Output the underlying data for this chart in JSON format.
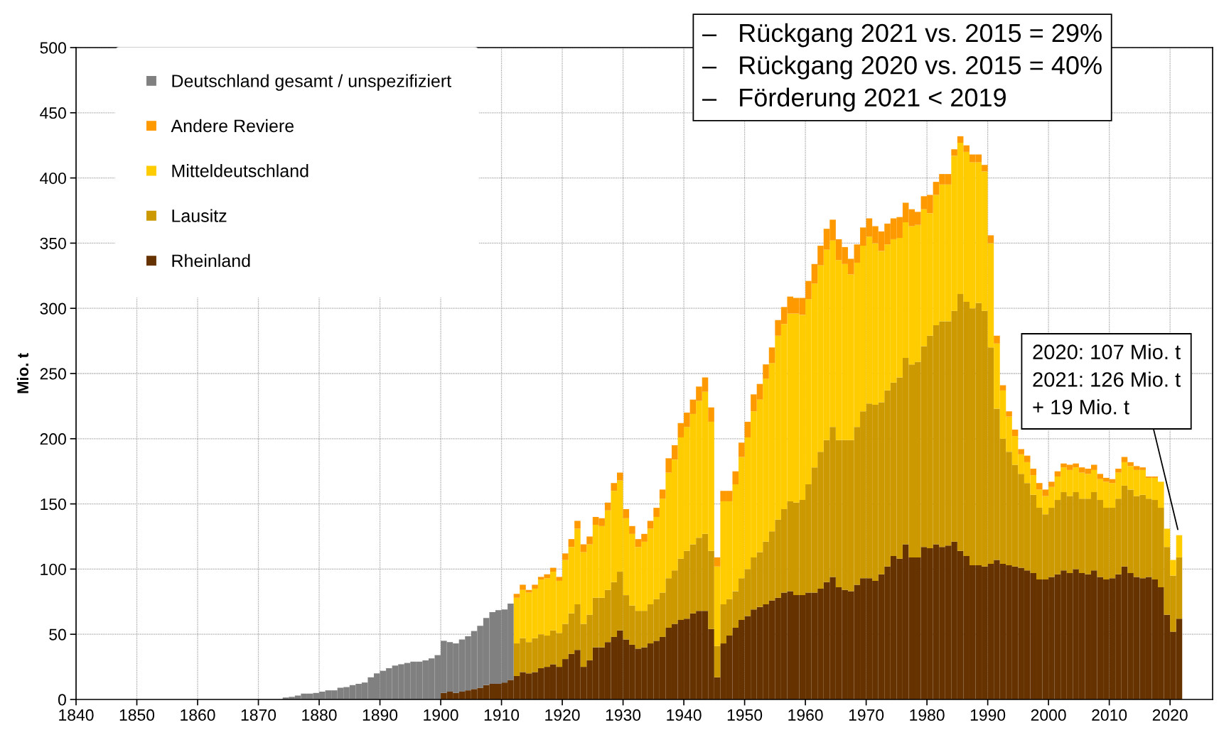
{
  "chart_data": {
    "type": "bar",
    "stacked": true,
    "ylabel": "Mio. t",
    "x": [
      1874,
      1875,
      1876,
      1877,
      1878,
      1879,
      1880,
      1881,
      1882,
      1883,
      1884,
      1885,
      1886,
      1887,
      1888,
      1889,
      1890,
      1891,
      1892,
      1893,
      1894,
      1895,
      1896,
      1897,
      1898,
      1899,
      1900,
      1901,
      1902,
      1903,
      1904,
      1905,
      1906,
      1907,
      1908,
      1909,
      1910,
      1911,
      1912,
      1913,
      1914,
      1915,
      1916,
      1917,
      1918,
      1919,
      1920,
      1921,
      1922,
      1923,
      1924,
      1925,
      1926,
      1927,
      1928,
      1929,
      1930,
      1931,
      1932,
      1933,
      1934,
      1935,
      1936,
      1937,
      1938,
      1939,
      1940,
      1941,
      1942,
      1943,
      1944,
      1945,
      1946,
      1947,
      1948,
      1949,
      1950,
      1951,
      1952,
      1953,
      1954,
      1955,
      1956,
      1957,
      1958,
      1959,
      1960,
      1961,
      1962,
      1963,
      1964,
      1965,
      1966,
      1967,
      1968,
      1969,
      1970,
      1971,
      1972,
      1973,
      1974,
      1975,
      1976,
      1977,
      1978,
      1979,
      1980,
      1981,
      1982,
      1983,
      1984,
      1985,
      1986,
      1987,
      1988,
      1989,
      1990,
      1991,
      1992,
      1993,
      1994,
      1995,
      1996,
      1997,
      1998,
      1999,
      2000,
      2001,
      2002,
      2003,
      2004,
      2005,
      2006,
      2007,
      2008,
      2009,
      2010,
      2011,
      2012,
      2013,
      2014,
      2015,
      2016,
      2017,
      2018,
      2019,
      2020,
      2021
    ],
    "series": [
      {
        "name": "Rheinland",
        "color": "#663300",
        "values": [
          null,
          null,
          null,
          null,
          null,
          null,
          null,
          null,
          null,
          null,
          null,
          null,
          null,
          null,
          null,
          null,
          null,
          null,
          null,
          null,
          null,
          null,
          null,
          null,
          null,
          null,
          5,
          6,
          5,
          6,
          7,
          8,
          9,
          11,
          12,
          12,
          13,
          15,
          18,
          21,
          20,
          21,
          24,
          25,
          27,
          25,
          31,
          35,
          38,
          25,
          30,
          40,
          40,
          44,
          48,
          53,
          46,
          42,
          39,
          40,
          43,
          45,
          48,
          55,
          58,
          61,
          62,
          66,
          68,
          68,
          54,
          17,
          43,
          49,
          55,
          61,
          64,
          69,
          71,
          73,
          76,
          78,
          82,
          83,
          80,
          80,
          82,
          82,
          85,
          90,
          94,
          86,
          84,
          83,
          88,
          93,
          93,
          91,
          96,
          102,
          110,
          108,
          119,
          109,
          109,
          117,
          116,
          119,
          117,
          118,
          121,
          114,
          110,
          103,
          103,
          102,
          104,
          107,
          104,
          103,
          102,
          101,
          99,
          97,
          92,
          92,
          94,
          96,
          99,
          97,
          100,
          97,
          96,
          99,
          94,
          92,
          93,
          96,
          102,
          97,
          94,
          93,
          94,
          92,
          86,
          65,
          52,
          62
        ]
      },
      {
        "name": "Lausitz",
        "color": "#cc9900",
        "values": [
          null,
          null,
          null,
          null,
          null,
          null,
          null,
          null,
          null,
          null,
          null,
          null,
          null,
          null,
          null,
          null,
          null,
          null,
          null,
          null,
          null,
          null,
          null,
          null,
          null,
          null,
          null,
          null,
          null,
          null,
          null,
          null,
          null,
          null,
          null,
          null,
          null,
          null,
          25,
          26,
          24,
          26,
          26,
          24,
          26,
          26,
          27,
          31,
          35,
          33,
          35,
          38,
          38,
          40,
          42,
          45,
          34,
          30,
          29,
          28,
          30,
          32,
          34,
          38,
          41,
          47,
          52,
          53,
          56,
          59,
          60,
          24,
          30,
          28,
          28,
          32,
          36,
          40,
          42,
          48,
          53,
          60,
          64,
          69,
          71,
          73,
          83,
          96,
          105,
          109,
          115,
          113,
          115,
          116,
          121,
          128,
          134,
          135,
          132,
          135,
          133,
          139,
          143,
          148,
          150,
          154,
          163,
          168,
          173,
          172,
          177,
          197,
          195,
          197,
          201,
          196,
          166,
          116,
          96,
          87,
          78,
          72,
          67,
          60,
          55,
          50,
          53,
          57,
          60,
          59,
          59,
          57,
          58,
          60,
          59,
          55,
          54,
          58,
          62,
          64,
          62,
          64,
          60,
          61,
          61,
          52,
          43,
          47
        ]
      },
      {
        "name": "Mitteldeutschland",
        "color": "#ffcc00",
        "values": [
          null,
          null,
          null,
          null,
          null,
          null,
          null,
          null,
          null,
          null,
          null,
          null,
          null,
          null,
          null,
          null,
          null,
          null,
          null,
          null,
          null,
          null,
          null,
          null,
          null,
          null,
          null,
          null,
          null,
          null,
          null,
          null,
          null,
          null,
          null,
          null,
          null,
          null,
          35,
          37,
          38,
          38,
          42,
          44,
          45,
          40,
          49,
          51,
          58,
          55,
          54,
          56,
          55,
          61,
          70,
          70,
          59,
          55,
          49,
          53,
          58,
          63,
          72,
          81,
          85,
          93,
          95,
          100,
          105,
          109,
          99,
          61,
          79,
          75,
          82,
          93,
          101,
          112,
          117,
          125,
          129,
          141,
          142,
          144,
          145,
          142,
          142,
          141,
          143,
          146,
          143,
          138,
          135,
          127,
          126,
          127,
          128,
          124,
          116,
          112,
          110,
          107,
          104,
          106,
          105,
          105,
          94,
          100,
          105,
          105,
          119,
          116,
          115,
          112,
          108,
          107,
          80,
          50,
          37,
          27,
          22,
          15,
          16,
          15,
          14,
          14,
          16,
          18,
          19,
          20,
          19,
          20,
          19,
          17,
          16,
          20,
          19,
          20,
          18,
          18,
          20,
          19,
          16,
          17,
          20,
          14,
          12,
          17
        ]
      },
      {
        "name": "Andere Reviere",
        "color": "#ff9900",
        "values": [
          null,
          null,
          null,
          null,
          null,
          null,
          null,
          null,
          null,
          null,
          null,
          null,
          null,
          null,
          null,
          null,
          null,
          null,
          null,
          null,
          null,
          null,
          null,
          null,
          null,
          null,
          null,
          null,
          null,
          null,
          null,
          null,
          null,
          null,
          null,
          null,
          null,
          null,
          3,
          4,
          2,
          3,
          2,
          3,
          3,
          3,
          5,
          6,
          6,
          6,
          6,
          6,
          6,
          6,
          6,
          6,
          7,
          6,
          6,
          6,
          6,
          7,
          7,
          11,
          11,
          11,
          11,
          11,
          11,
          11,
          11,
          7,
          8,
          8,
          10,
          11,
          12,
          13,
          12,
          11,
          12,
          12,
          13,
          13,
          12,
          13,
          14,
          15,
          15,
          16,
          16,
          16,
          13,
          12,
          14,
          14,
          14,
          13,
          15,
          16,
          16,
          16,
          15,
          13,
          10,
          10,
          14,
          10,
          8,
          8,
          5,
          5,
          5,
          6,
          6,
          5,
          6,
          6,
          4,
          4,
          5,
          4,
          5,
          5,
          5,
          5,
          4,
          4,
          3,
          4,
          3,
          4,
          4,
          4,
          4,
          3,
          3,
          3,
          4,
          3,
          3,
          2,
          1,
          1,
          null,
          null,
          null,
          null
        ]
      },
      {
        "name": "Deutschland gesamt / unspezifiziert",
        "color": "#808080",
        "values": [
          1.5,
          2,
          3,
          4.5,
          4.5,
          5,
          6,
          7,
          7,
          9,
          9.5,
          11,
          12,
          13,
          17,
          20,
          22,
          24,
          26,
          27,
          28,
          29,
          29,
          30,
          31.5,
          34,
          40,
          38,
          38,
          40,
          41.5,
          44.5,
          47.5,
          51.5,
          55,
          56.5,
          56,
          58.5,
          null,
          null,
          null,
          null,
          null,
          null,
          null,
          null,
          null,
          null,
          null,
          null,
          null,
          null,
          null,
          null,
          null,
          null,
          null,
          null,
          null,
          null,
          null,
          null,
          null,
          null,
          null,
          null,
          null,
          null,
          null,
          null,
          null,
          null,
          null,
          null,
          null,
          null,
          null,
          null,
          null,
          null,
          null,
          null,
          null,
          null,
          null,
          null,
          null,
          null,
          null,
          null,
          null,
          null,
          null,
          null,
          null,
          null,
          null,
          null,
          null,
          null,
          null,
          null,
          null,
          null,
          null,
          null,
          null,
          null,
          null,
          null,
          null,
          null,
          null,
          null,
          null,
          null,
          null,
          null,
          null,
          null,
          null,
          null,
          null,
          null,
          null,
          null,
          null,
          null,
          null,
          null,
          null,
          null,
          null,
          null,
          null,
          null,
          null,
          null,
          null,
          null,
          null,
          null,
          null,
          null,
          null,
          null,
          null,
          null
        ]
      }
    ],
    "xlim": [
      1840,
      2027
    ],
    "xticks": [
      1840,
      1850,
      1860,
      1870,
      1880,
      1890,
      1900,
      1910,
      1920,
      1930,
      1940,
      1950,
      1960,
      1970,
      1980,
      1990,
      2000,
      2010,
      2020
    ],
    "ylim": [
      0,
      500
    ],
    "yticks": [
      0,
      50,
      100,
      150,
      200,
      250,
      300,
      350,
      400,
      450,
      500
    ],
    "grid": true,
    "legend": "top left",
    "annotations": [
      "–   Rückgang 2021 vs. 2015 = 29%",
      "–   Rückgang 2020 vs. 2015 = 40%",
      "–   Förderung 2021 < 2019",
      {
        "text": "2020: 107 Mio. t\n2021: 126 Mio. t\n+ 19 Mio. t",
        "x": 2021.5,
        "y": 126
      }
    ]
  }
}
